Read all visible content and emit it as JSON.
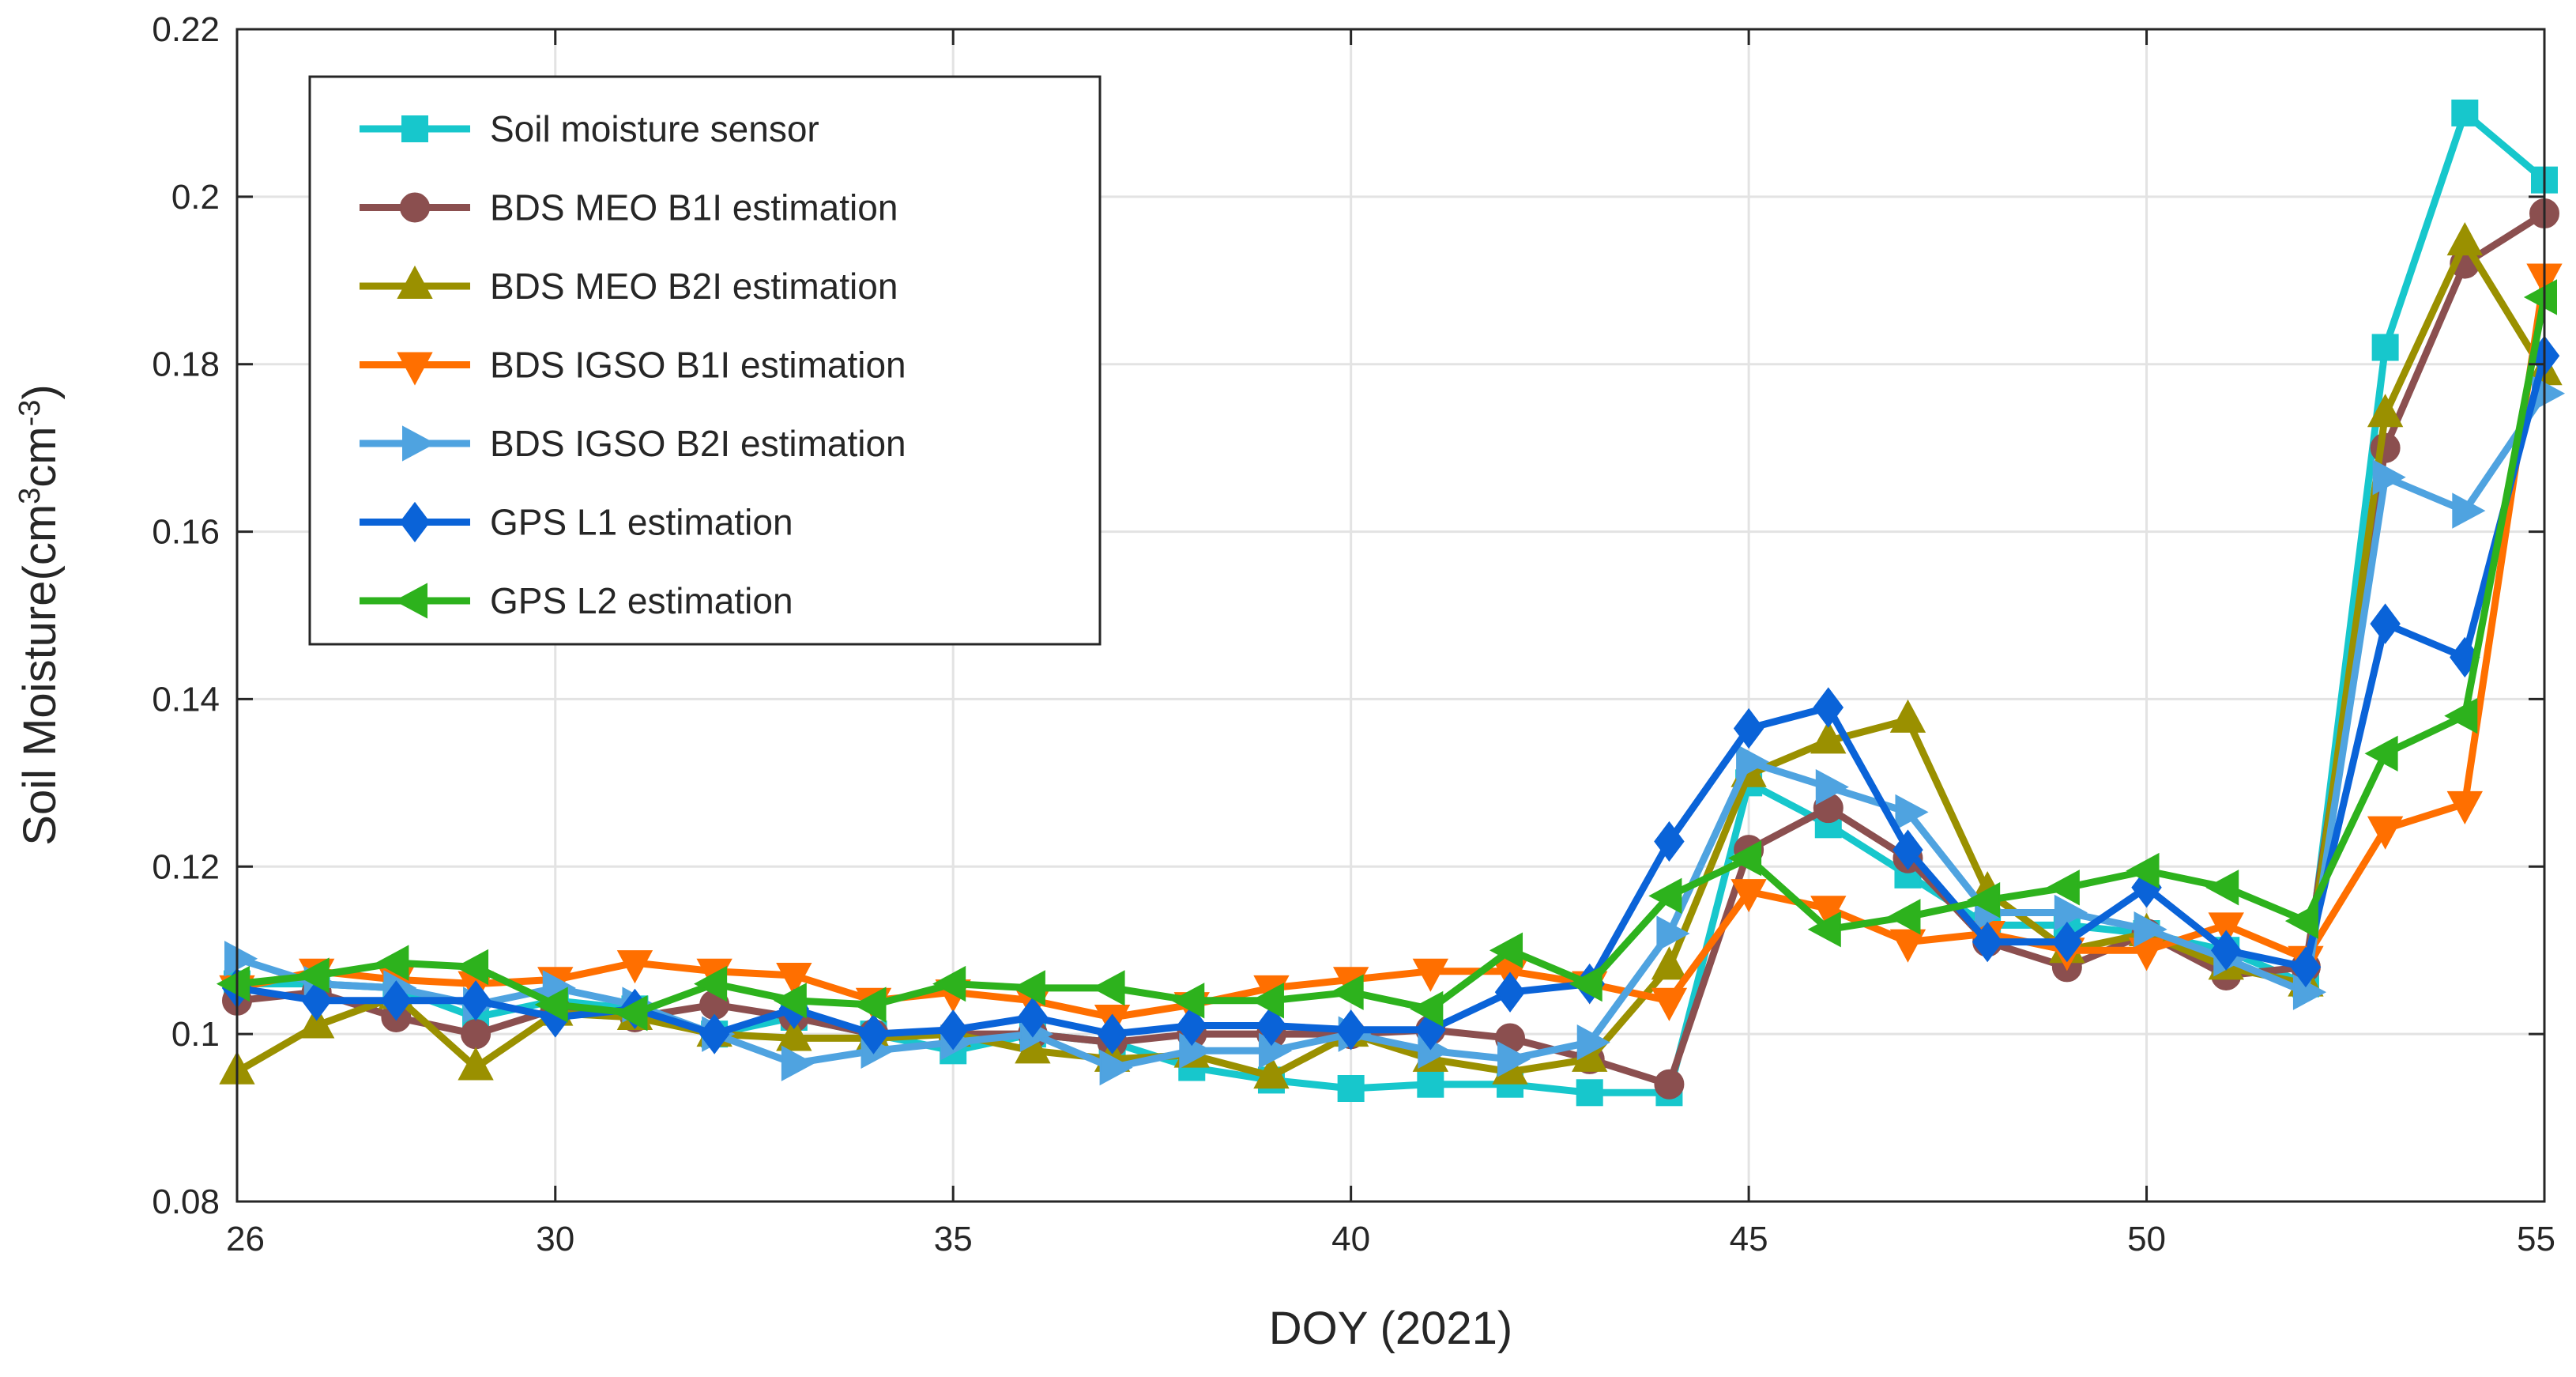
{
  "chart_data": {
    "type": "line",
    "title": "",
    "xlabel": "DOY (2021)",
    "ylabel_parts": {
      "main": "Soil Moisture(cm",
      "sup1": "3",
      "mid": "cm",
      "sup2": "-3",
      "end": ")"
    },
    "xlim": [
      26,
      55
    ],
    "ylim": [
      0.08,
      0.22
    ],
    "xticks": [
      26,
      30,
      35,
      40,
      45,
      50,
      55
    ],
    "yticks": [
      0.08,
      0.1,
      0.12,
      0.14,
      0.16,
      0.18,
      0.2,
      0.22
    ],
    "ytick_labels": [
      "0.08",
      "0.1",
      "0.12",
      "0.14",
      "0.16",
      "0.18",
      "0.2",
      "0.22"
    ],
    "grid": true,
    "legend_position": "top-left",
    "series": [
      {
        "name": "Soil moisture sensor",
        "color": "#17c7cc",
        "marker": "square",
        "x": [
          26,
          27,
          28,
          29,
          30,
          31,
          32,
          33,
          34,
          35,
          36,
          37,
          38,
          39,
          40,
          41,
          42,
          43,
          44,
          45,
          46,
          47,
          48,
          49,
          50,
          51,
          52,
          53,
          54,
          55
        ],
        "values": [
          0.106,
          0.106,
          0.1055,
          0.102,
          0.104,
          0.103,
          0.1,
          0.102,
          0.1,
          0.098,
          0.1,
          0.099,
          0.096,
          0.0945,
          0.0935,
          0.094,
          0.094,
          0.093,
          0.093,
          0.13,
          0.125,
          0.119,
          0.113,
          0.113,
          0.112,
          0.11,
          0.106,
          0.182,
          0.21,
          0.202
        ]
      },
      {
        "name": "BDS MEO  B1I estimation",
        "color": "#8b4f4f",
        "marker": "circle",
        "x": [
          26,
          27,
          28,
          29,
          30,
          31,
          32,
          33,
          34,
          35,
          36,
          37,
          38,
          39,
          40,
          41,
          42,
          43,
          44,
          45,
          46,
          47,
          48,
          49,
          50,
          51,
          52,
          53,
          54,
          55
        ],
        "values": [
          0.104,
          0.105,
          0.102,
          0.1,
          0.103,
          0.102,
          0.1035,
          0.102,
          0.1,
          0.1,
          0.1,
          0.099,
          0.1,
          0.1,
          0.1,
          0.1005,
          0.0995,
          0.097,
          0.094,
          0.122,
          0.127,
          0.121,
          0.111,
          0.108,
          0.112,
          0.107,
          0.108,
          0.17,
          0.192,
          0.198
        ]
      },
      {
        "name": "BDS MEO  B2I estimation",
        "color": "#9a9000",
        "marker": "triangle-up",
        "x": [
          26,
          27,
          28,
          29,
          30,
          31,
          32,
          33,
          34,
          35,
          36,
          37,
          38,
          39,
          40,
          41,
          42,
          43,
          44,
          45,
          46,
          47,
          48,
          49,
          50,
          51,
          52,
          53,
          54,
          55
        ],
        "values": [
          0.0955,
          0.101,
          0.1045,
          0.096,
          0.1025,
          0.102,
          0.1,
          0.0995,
          0.0995,
          0.1,
          0.098,
          0.097,
          0.0975,
          0.095,
          0.1,
          0.097,
          0.0955,
          0.097,
          0.108,
          0.131,
          0.135,
          0.1375,
          0.117,
          0.11,
          0.112,
          0.108,
          0.106,
          0.174,
          0.1945,
          0.179
        ]
      },
      {
        "name": "BDS IGSO  B1I estimation",
        "color": "#ff6f00",
        "marker": "triangle-down",
        "x": [
          26,
          27,
          28,
          29,
          30,
          31,
          32,
          33,
          34,
          35,
          36,
          37,
          38,
          39,
          40,
          41,
          42,
          43,
          44,
          45,
          46,
          47,
          48,
          49,
          50,
          51,
          52,
          53,
          54,
          55
        ],
        "values": [
          0.1055,
          0.1075,
          0.1065,
          0.106,
          0.1065,
          0.1085,
          0.1075,
          0.107,
          0.104,
          0.105,
          0.104,
          0.102,
          0.1035,
          0.1055,
          0.1065,
          0.1075,
          0.1075,
          0.106,
          0.104,
          0.117,
          0.115,
          0.111,
          0.112,
          0.11,
          0.11,
          0.113,
          0.109,
          0.1245,
          0.1275,
          0.1905
        ]
      },
      {
        "name": "BDS IGSO  B2I estimation",
        "color": "#4fa3e0",
        "marker": "triangle-right",
        "x": [
          26,
          27,
          28,
          29,
          30,
          31,
          32,
          33,
          34,
          35,
          36,
          37,
          38,
          39,
          40,
          41,
          42,
          43,
          44,
          45,
          46,
          47,
          48,
          49,
          50,
          51,
          52,
          53,
          54,
          55
        ],
        "values": [
          0.109,
          0.106,
          0.1055,
          0.1035,
          0.1055,
          0.1035,
          0.1,
          0.0965,
          0.098,
          0.099,
          0.1,
          0.096,
          0.098,
          0.098,
          0.1,
          0.098,
          0.097,
          0.099,
          0.112,
          0.1325,
          0.1295,
          0.1265,
          0.1145,
          0.1145,
          0.1125,
          0.109,
          0.105,
          0.1665,
          0.1625,
          0.1765
        ]
      },
      {
        "name": "GPS  L1  estimation",
        "color": "#0a63d8",
        "marker": "diamond",
        "x": [
          26,
          27,
          28,
          29,
          30,
          31,
          32,
          33,
          34,
          35,
          36,
          37,
          38,
          39,
          40,
          41,
          42,
          43,
          44,
          45,
          46,
          47,
          48,
          49,
          50,
          51,
          52,
          53,
          54,
          55
        ],
        "values": [
          0.1055,
          0.104,
          0.104,
          0.104,
          0.102,
          0.103,
          0.1,
          0.103,
          0.1,
          0.1005,
          0.102,
          0.1,
          0.101,
          0.101,
          0.1005,
          0.1005,
          0.105,
          0.106,
          0.123,
          0.1365,
          0.139,
          0.122,
          0.111,
          0.111,
          0.1175,
          0.11,
          0.108,
          0.149,
          0.145,
          0.181
        ]
      },
      {
        "name": "GPS  L2  estimation",
        "color": "#2db21d",
        "marker": "triangle-left",
        "x": [
          26,
          27,
          28,
          29,
          30,
          31,
          32,
          33,
          34,
          35,
          36,
          37,
          38,
          39,
          40,
          41,
          42,
          43,
          44,
          45,
          46,
          47,
          48,
          49,
          50,
          51,
          52,
          53,
          54,
          55
        ],
        "values": [
          0.106,
          0.107,
          0.1085,
          0.108,
          0.1035,
          0.1025,
          0.106,
          0.104,
          0.1035,
          0.106,
          0.1055,
          0.1055,
          0.104,
          0.104,
          0.105,
          0.103,
          0.11,
          0.106,
          0.1165,
          0.121,
          0.1125,
          0.114,
          0.116,
          0.1175,
          0.1195,
          0.1175,
          0.1135,
          0.1335,
          0.138,
          0.188
        ]
      }
    ]
  }
}
